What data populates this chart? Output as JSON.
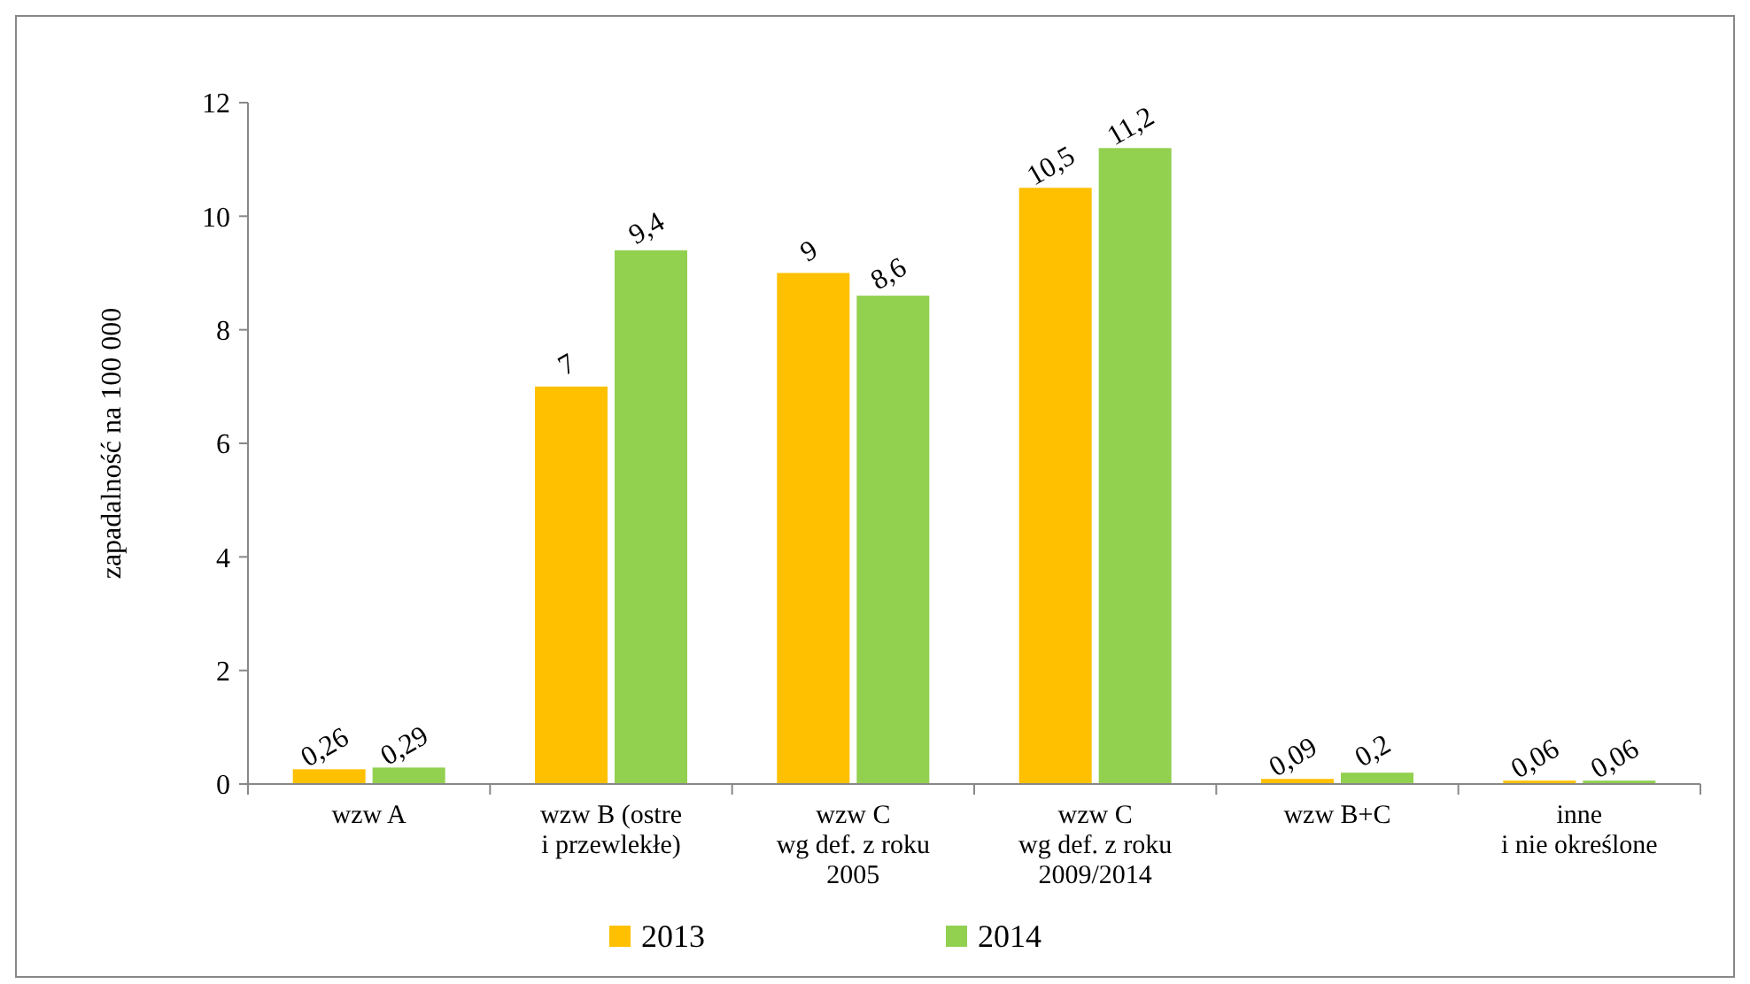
{
  "chart_data": {
    "type": "bar",
    "ylabel": "zapadalność na 100 000",
    "categories": [
      "wzw A",
      "wzw B (ostre\ni przewlekłe)",
      "wzw C\nwg def. z roku\n2005",
      "wzw C\nwg def. z roku\n2009/2014",
      "wzw B+C",
      "inne\ni nie określone"
    ],
    "series": [
      {
        "name": "2013",
        "color": "#ffc000",
        "values": [
          0.26,
          7,
          9,
          10.5,
          0.09,
          0.06
        ],
        "value_labels": [
          "0,26",
          "7",
          "9",
          "10,5",
          "0,09",
          "0,06"
        ]
      },
      {
        "name": "2014",
        "color": "#92d050",
        "values": [
          0.29,
          9.4,
          8.6,
          11.2,
          0.2,
          0.06
        ],
        "value_labels": [
          "0,29",
          "9,4",
          "8,6",
          "11,2",
          "0,2",
          "0,06"
        ]
      }
    ],
    "ylim": [
      0,
      12
    ],
    "yticks": [
      0,
      2,
      4,
      6,
      8,
      10,
      12
    ],
    "grid": false,
    "legend": "bottom"
  }
}
